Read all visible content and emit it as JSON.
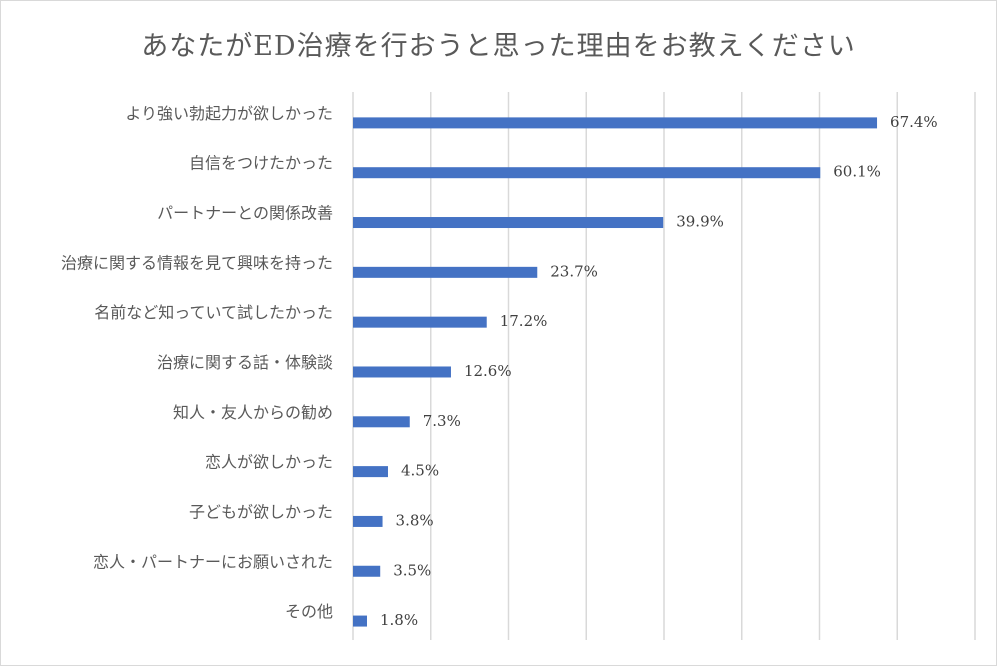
{
  "chart_data": {
    "type": "bar",
    "orientation": "horizontal",
    "title": "あなたがED治療を行おうと思った理由をお教えください",
    "categories": [
      "より強い勃起力が欲しかった",
      "自信をつけたかった",
      "パートナーとの関係改善",
      "治療に関する情報を見て興味を持った",
      "名前など知っていて試したかった",
      "治療に関する話・体験談",
      "知人・友人からの勧め",
      "恋人が欲しかった",
      "子どもが欲しかった",
      "恋人・パートナーにお願いされた",
      "その他"
    ],
    "values": [
      67.4,
      60.1,
      39.9,
      23.7,
      17.2,
      12.6,
      7.3,
      4.5,
      3.8,
      3.5,
      1.8
    ],
    "value_labels": [
      "67.4%",
      "60.1%",
      "39.9%",
      "23.7%",
      "17.2%",
      "12.6%",
      "7.3%",
      "4.5%",
      "3.8%",
      "3.5%",
      "1.8%"
    ],
    "xlim": [
      0,
      80
    ],
    "x_gridline_step": 10,
    "grid": true,
    "bar_color": "#4472c4",
    "gridline_color": "#d9d9d9"
  }
}
